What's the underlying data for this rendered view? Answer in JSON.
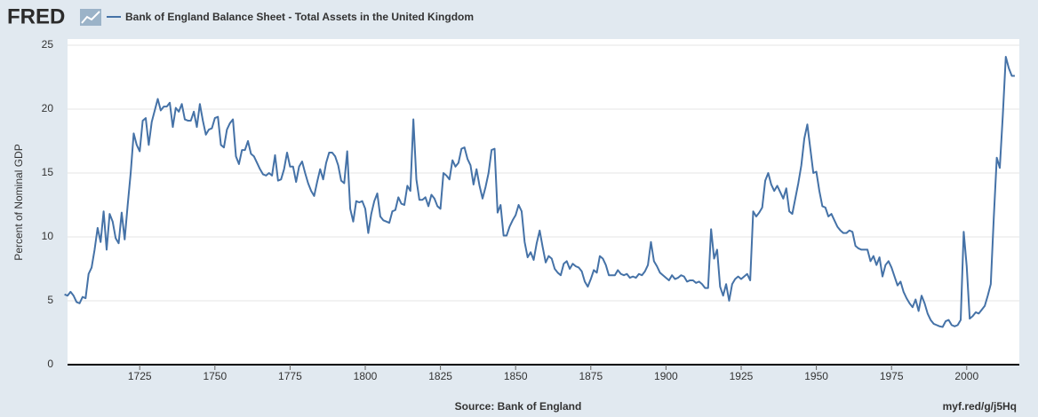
{
  "logo": "FRED",
  "chart_data": {
    "type": "line",
    "title": "Bank of England Balance Sheet - Total Assets in the United Kingdom",
    "y_label": "Percent of Nominal GDP",
    "source": "Source: Bank of England",
    "link": "myf.red/g/j5Hq",
    "x": [
      1700,
      1701,
      1702,
      1703,
      1704,
      1705,
      1706,
      1707,
      1708,
      1709,
      1710,
      1711,
      1712,
      1713,
      1714,
      1715,
      1716,
      1717,
      1718,
      1719,
      1720,
      1721,
      1722,
      1723,
      1724,
      1725,
      1726,
      1727,
      1728,
      1729,
      1730,
      1731,
      1732,
      1733,
      1734,
      1735,
      1736,
      1737,
      1738,
      1739,
      1740,
      1741,
      1742,
      1743,
      1744,
      1745,
      1746,
      1747,
      1748,
      1749,
      1750,
      1751,
      1752,
      1753,
      1754,
      1755,
      1756,
      1757,
      1758,
      1759,
      1760,
      1761,
      1762,
      1763,
      1764,
      1765,
      1766,
      1767,
      1768,
      1769,
      1770,
      1771,
      1772,
      1773,
      1774,
      1775,
      1776,
      1777,
      1778,
      1779,
      1780,
      1781,
      1782,
      1783,
      1784,
      1785,
      1786,
      1787,
      1788,
      1789,
      1790,
      1791,
      1792,
      1793,
      1794,
      1795,
      1796,
      1797,
      1798,
      1799,
      1800,
      1801,
      1802,
      1803,
      1804,
      1805,
      1806,
      1807,
      1808,
      1809,
      1810,
      1811,
      1812,
      1813,
      1814,
      1815,
      1816,
      1817,
      1818,
      1819,
      1820,
      1821,
      1822,
      1823,
      1824,
      1825,
      1826,
      1827,
      1828,
      1829,
      1830,
      1831,
      1832,
      1833,
      1834,
      1835,
      1836,
      1837,
      1838,
      1839,
      1840,
      1841,
      1842,
      1843,
      1844,
      1845,
      1846,
      1847,
      1848,
      1849,
      1850,
      1851,
      1852,
      1853,
      1854,
      1855,
      1856,
      1857,
      1858,
      1859,
      1860,
      1861,
      1862,
      1863,
      1864,
      1865,
      1866,
      1867,
      1868,
      1869,
      1870,
      1871,
      1872,
      1873,
      1874,
      1875,
      1876,
      1877,
      1878,
      1879,
      1880,
      1881,
      1882,
      1883,
      1884,
      1885,
      1886,
      1887,
      1888,
      1889,
      1890,
      1891,
      1892,
      1893,
      1894,
      1895,
      1896,
      1897,
      1898,
      1899,
      1900,
      1901,
      1902,
      1903,
      1904,
      1905,
      1906,
      1907,
      1908,
      1909,
      1910,
      1911,
      1912,
      1913,
      1914,
      1915,
      1916,
      1917,
      1918,
      1919,
      1920,
      1921,
      1922,
      1923,
      1924,
      1925,
      1926,
      1927,
      1928,
      1929,
      1930,
      1931,
      1932,
      1933,
      1934,
      1935,
      1936,
      1937,
      1938,
      1939,
      1940,
      1941,
      1942,
      1943,
      1944,
      1945,
      1946,
      1947,
      1948,
      1949,
      1950,
      1951,
      1952,
      1953,
      1954,
      1955,
      1956,
      1957,
      1958,
      1959,
      1960,
      1961,
      1962,
      1963,
      1964,
      1965,
      1966,
      1967,
      1968,
      1969,
      1970,
      1971,
      1972,
      1973,
      1974,
      1975,
      1976,
      1977,
      1978,
      1979,
      1980,
      1981,
      1982,
      1983,
      1984,
      1985,
      1986,
      1987,
      1988,
      1989,
      1990,
      1991,
      1992,
      1993,
      1994,
      1995,
      1996,
      1997,
      1998,
      1999,
      2000,
      2001,
      2002,
      2003,
      2004,
      2005,
      2006,
      2007,
      2008,
      2009,
      2010,
      2011,
      2012,
      2013,
      2014,
      2015,
      2016
    ],
    "series": [
      {
        "name": "Bank of England Balance Sheet - Total Assets in the United Kingdom",
        "color": "#4572a7",
        "values": [
          5.5,
          5.4,
          5.7,
          5.4,
          4.9,
          4.8,
          5.3,
          5.2,
          7.1,
          7.6,
          9.0,
          10.7,
          9.6,
          12.0,
          9.0,
          11.8,
          11.2,
          9.9,
          9.5,
          11.9,
          9.8,
          12.5,
          15.0,
          18.1,
          17.2,
          16.7,
          19.1,
          19.3,
          17.2,
          19.0,
          19.9,
          20.8,
          19.9,
          20.2,
          20.2,
          20.5,
          18.6,
          20.1,
          19.8,
          20.4,
          19.2,
          19.1,
          19.1,
          19.8,
          18.6,
          20.4,
          19.1,
          18.0,
          18.4,
          18.5,
          19.3,
          19.4,
          17.2,
          17.0,
          18.4,
          18.9,
          19.2,
          16.3,
          15.7,
          16.8,
          16.8,
          17.5,
          16.5,
          16.3,
          15.8,
          15.3,
          14.9,
          14.8,
          15.0,
          14.8,
          16.4,
          14.4,
          14.5,
          15.3,
          16.6,
          15.5,
          15.5,
          14.3,
          15.5,
          15.9,
          15.0,
          14.2,
          13.6,
          13.2,
          14.3,
          15.3,
          14.5,
          15.8,
          16.6,
          16.6,
          16.3,
          15.6,
          14.4,
          14.2,
          16.7,
          12.2,
          11.2,
          12.8,
          12.7,
          12.8,
          12.2,
          10.3,
          11.8,
          12.8,
          13.4,
          11.6,
          11.3,
          11.2,
          11.1,
          12.0,
          12.1,
          13.1,
          12.6,
          12.5,
          14.0,
          13.6,
          19.2,
          14.5,
          12.9,
          12.9,
          13.1,
          12.4,
          13.3,
          13.0,
          12.4,
          12.2,
          15.0,
          14.8,
          14.5,
          16.0,
          15.5,
          15.8,
          16.9,
          17.0,
          16.1,
          15.6,
          14.1,
          15.3,
          14.0,
          13.0,
          13.9,
          15.0,
          16.8,
          16.9,
          11.9,
          12.5,
          10.1,
          10.1,
          10.8,
          11.3,
          11.7,
          12.5,
          12.0,
          9.6,
          8.4,
          8.8,
          8.2,
          9.5,
          10.5,
          9.2,
          8.0,
          8.5,
          8.3,
          7.5,
          7.2,
          7.0,
          7.9,
          8.1,
          7.5,
          7.9,
          7.7,
          7.6,
          7.3,
          6.5,
          6.1,
          6.7,
          7.4,
          7.2,
          8.5,
          8.3,
          7.8,
          7.0,
          7.0,
          7.0,
          7.4,
          7.1,
          7.0,
          7.1,
          6.8,
          6.9,
          6.8,
          7.1,
          7.0,
          7.3,
          7.8,
          9.6,
          8.1,
          7.7,
          7.2,
          7.0,
          6.8,
          6.6,
          7.0,
          6.7,
          6.8,
          7.0,
          6.9,
          6.5,
          6.6,
          6.6,
          6.4,
          6.5,
          6.3,
          6.0,
          6.0,
          10.6,
          8.3,
          9.0,
          6.1,
          5.4,
          6.3,
          5.0,
          6.3,
          6.7,
          6.9,
          6.7,
          6.9,
          7.1,
          6.6,
          12.0,
          11.6,
          11.9,
          12.3,
          14.4,
          15.0,
          14.1,
          13.6,
          14.0,
          13.5,
          13.0,
          13.8,
          12.0,
          11.8,
          13.0,
          14.2,
          15.6,
          17.7,
          18.8,
          16.9,
          15.0,
          15.1,
          13.6,
          12.4,
          12.3,
          11.6,
          11.8,
          11.3,
          10.8,
          10.5,
          10.3,
          10.3,
          10.5,
          10.4,
          9.3,
          9.1,
          9.0,
          9.0,
          9.0,
          8.1,
          8.5,
          7.8,
          8.4,
          6.9,
          7.8,
          8.1,
          7.6,
          6.9,
          6.2,
          6.5,
          5.7,
          5.2,
          4.8,
          4.5,
          5.1,
          4.2,
          5.4,
          4.8,
          4.0,
          3.5,
          3.2,
          3.1,
          3.0,
          2.95,
          3.4,
          3.5,
          3.1,
          3.0,
          3.1,
          3.5,
          10.4,
          7.7,
          3.6,
          3.8,
          4.1,
          4.0,
          4.3,
          4.6,
          5.4,
          6.3,
          11.5,
          16.2,
          15.4,
          19.5,
          24.1,
          23.2,
          22.6,
          22.6
        ]
      }
    ],
    "xlim": [
      1701,
      2017.5
    ],
    "xticks": [
      1725,
      1750,
      1775,
      1800,
      1825,
      1850,
      1875,
      1900,
      1925,
      1950,
      1975,
      2000
    ],
    "ylim": [
      0,
      25
    ],
    "yticks": [
      0,
      5,
      10,
      15,
      20,
      25
    ],
    "grid": true
  }
}
